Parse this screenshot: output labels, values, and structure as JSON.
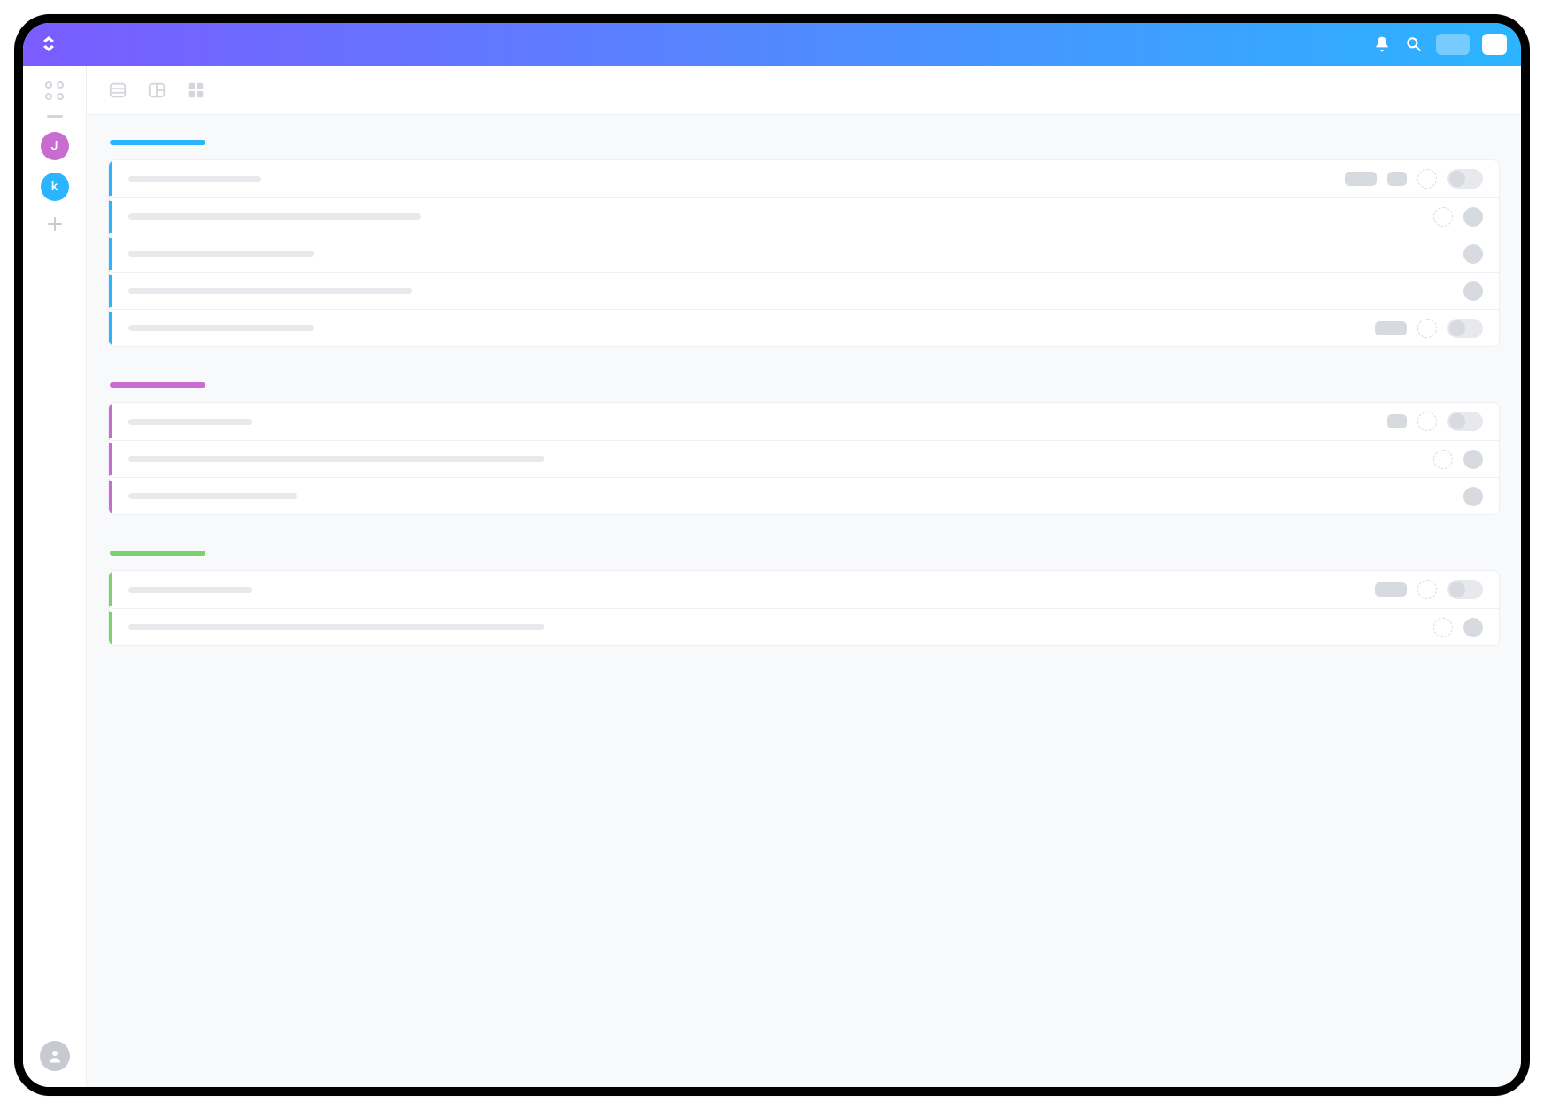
{
  "colors": {
    "topbar_gradient_from": "#7a5cff",
    "topbar_gradient_to": "#2bb4ff",
    "sidebar_border": "#eef0f3",
    "skeleton": "#e7e9ed",
    "skeleton_dark": "#d7dade",
    "content_bg": "#f8f9fb"
  },
  "topbar": {
    "logo_name": "clickup-logo",
    "notifications_label": "Notifications",
    "search_label": "Search",
    "action1_label": "",
    "action2_label": ""
  },
  "sidebar": {
    "apps_label": "Apps",
    "workspaces": [
      {
        "letter": "J",
        "color": "#c96cd0"
      },
      {
        "letter": "k",
        "color": "#2bb4ff"
      }
    ],
    "add_label": "Add workspace",
    "profile_label": "Profile"
  },
  "toolbar": {
    "views": [
      {
        "name": "list-view-icon"
      },
      {
        "name": "board-view-icon"
      },
      {
        "name": "box-view-icon"
      }
    ]
  },
  "groups": [
    {
      "color": "#2bb4ff",
      "rows": [
        {
          "title_width": 150,
          "tags": [
            36,
            22
          ],
          "dashed": true,
          "toggle": true
        },
        {
          "title_width": 330,
          "tags": [],
          "dashed": true,
          "solid": true
        },
        {
          "title_width": 210,
          "tags": [],
          "solid": true
        },
        {
          "title_width": 320,
          "tags": [],
          "solid": true
        },
        {
          "title_width": 210,
          "tags": [
            36
          ],
          "dashed": true,
          "toggle": true
        }
      ]
    },
    {
      "color": "#c96cd0",
      "rows": [
        {
          "title_width": 140,
          "tags": [
            22
          ],
          "dashed": true,
          "toggle": true
        },
        {
          "title_width": 470,
          "tags": [],
          "dashed": true,
          "solid": true
        },
        {
          "title_width": 190,
          "tags": [],
          "solid": true
        }
      ]
    },
    {
      "color": "#7cd36b",
      "rows": [
        {
          "title_width": 140,
          "tags": [
            36
          ],
          "dashed": true,
          "toggle": true
        },
        {
          "title_width": 470,
          "tags": [],
          "dashed": true,
          "solid": true
        }
      ]
    }
  ]
}
